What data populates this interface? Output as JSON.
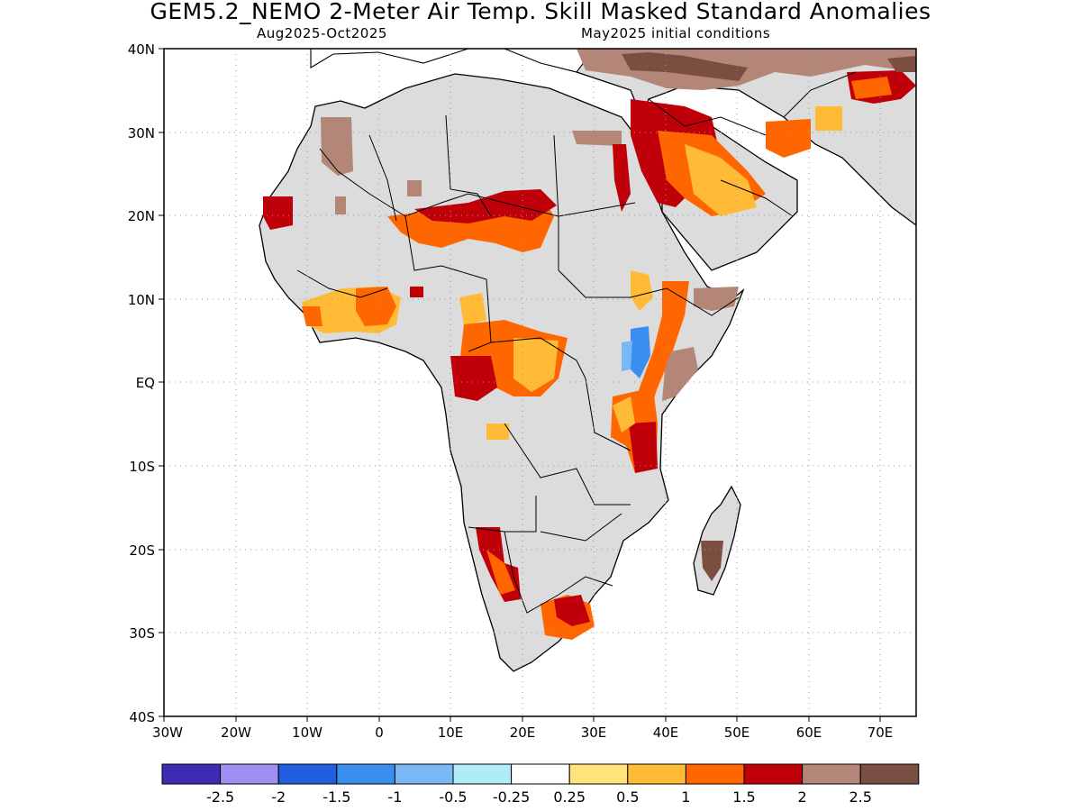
{
  "title": "GEM5.2_NEMO 2-Meter Air Temp. Skill Masked Standard Anomalies",
  "subtitle_left": "Aug2025-Oct2025",
  "subtitle_right": "May2025 initial conditions",
  "lat_labels": [
    "40N",
    "30N",
    "20N",
    "10N",
    "EQ",
    "10S",
    "20S",
    "30S",
    "40S"
  ],
  "lon_labels": [
    "30W",
    "20W",
    "10W",
    "0",
    "10E",
    "20E",
    "30E",
    "40E",
    "50E",
    "60E",
    "70E"
  ],
  "colorbar": {
    "labels": [
      "-2.5",
      "-2",
      "-1.5",
      "-1",
      "-0.5",
      "-0.25",
      "0.25",
      "0.5",
      "1",
      "1.5",
      "2",
      "2.5"
    ],
    "colors": [
      "#3c2bb3",
      "#9f8ff2",
      "#2060e0",
      "#3a8ef0",
      "#7ab8f5",
      "#b0ecf8",
      "#ffffff",
      "#ffe47a",
      "#ffbb36",
      "#ff6600",
      "#c00008",
      "#b38678",
      "#7a4e40"
    ]
  },
  "colors": {
    "land_masked": "#dcdcdc",
    "ocean": "#ffffff",
    "grid": "#9a9a9a"
  }
}
